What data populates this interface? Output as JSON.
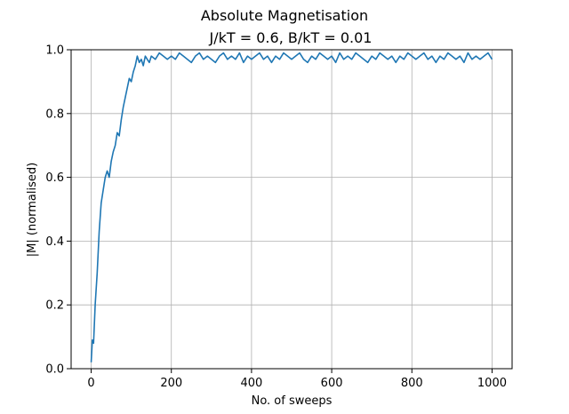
{
  "chart_data": {
    "type": "line",
    "title": "Absolute Magnetisation",
    "subtitle": "J/kT = 0.6, B/kT = 0.01",
    "xlabel": "No. of sweeps",
    "ylabel": "|M| (normalised)",
    "xlim": [
      -50,
      1050
    ],
    "ylim": [
      0.0,
      1.0
    ],
    "xticks": [
      0,
      200,
      400,
      600,
      800,
      1000
    ],
    "yticks": [
      0.0,
      0.2,
      0.4,
      0.6,
      0.8,
      1.0
    ],
    "xtick_labels": [
      "0",
      "200",
      "400",
      "600",
      "800",
      "1000"
    ],
    "ytick_labels": [
      "0.0",
      "0.2",
      "0.4",
      "0.6",
      "0.8",
      "1.0"
    ],
    "grid": true,
    "line_color": "#1f77b4",
    "x": [
      0,
      3,
      6,
      10,
      15,
      20,
      25,
      30,
      35,
      40,
      45,
      50,
      55,
      60,
      65,
      70,
      75,
      80,
      85,
      90,
      95,
      100,
      105,
      110,
      115,
      120,
      125,
      130,
      135,
      140,
      145,
      150,
      160,
      170,
      180,
      190,
      200,
      210,
      220,
      230,
      240,
      250,
      260,
      270,
      280,
      290,
      300,
      310,
      320,
      330,
      340,
      350,
      360,
      370,
      380,
      390,
      400,
      410,
      420,
      430,
      440,
      450,
      460,
      470,
      480,
      490,
      500,
      510,
      520,
      530,
      540,
      550,
      560,
      570,
      580,
      590,
      600,
      610,
      620,
      630,
      640,
      650,
      660,
      670,
      680,
      690,
      700,
      710,
      720,
      730,
      740,
      750,
      760,
      770,
      780,
      790,
      800,
      810,
      820,
      830,
      840,
      850,
      860,
      870,
      880,
      890,
      900,
      910,
      920,
      930,
      940,
      950,
      960,
      970,
      980,
      990,
      1000
    ],
    "y": [
      0.02,
      0.09,
      0.08,
      0.2,
      0.3,
      0.43,
      0.52,
      0.56,
      0.6,
      0.62,
      0.6,
      0.65,
      0.68,
      0.7,
      0.74,
      0.73,
      0.78,
      0.82,
      0.85,
      0.88,
      0.91,
      0.9,
      0.93,
      0.95,
      0.98,
      0.96,
      0.97,
      0.95,
      0.98,
      0.97,
      0.96,
      0.98,
      0.97,
      0.99,
      0.98,
      0.97,
      0.98,
      0.97,
      0.99,
      0.98,
      0.97,
      0.96,
      0.98,
      0.99,
      0.97,
      0.98,
      0.97,
      0.96,
      0.98,
      0.99,
      0.97,
      0.98,
      0.97,
      0.99,
      0.96,
      0.98,
      0.97,
      0.98,
      0.99,
      0.97,
      0.98,
      0.96,
      0.98,
      0.97,
      0.99,
      0.98,
      0.97,
      0.98,
      0.99,
      0.97,
      0.96,
      0.98,
      0.97,
      0.99,
      0.98,
      0.97,
      0.98,
      0.96,
      0.99,
      0.97,
      0.98,
      0.97,
      0.99,
      0.98,
      0.97,
      0.96,
      0.98,
      0.97,
      0.99,
      0.98,
      0.97,
      0.98,
      0.96,
      0.98,
      0.97,
      0.99,
      0.98,
      0.97,
      0.98,
      0.99,
      0.97,
      0.98,
      0.96,
      0.98,
      0.97,
      0.99,
      0.98,
      0.97,
      0.98,
      0.96,
      0.99,
      0.97,
      0.98,
      0.97,
      0.98,
      0.99,
      0.97
    ]
  }
}
